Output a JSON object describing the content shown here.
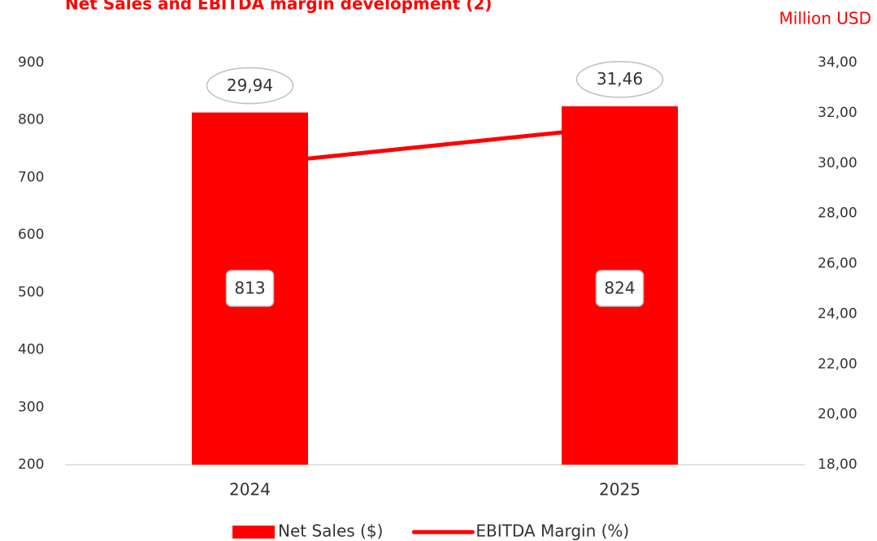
{
  "chart_data": {
    "type": "bar",
    "title": "Net Sales and EBITDA margin development (2)",
    "unit_label": "Million USD",
    "categories": [
      "2024",
      "2025"
    ],
    "series": [
      {
        "name": "Net Sales ($)",
        "type": "bar",
        "color": "#ff0000",
        "values": [
          813,
          824
        ]
      },
      {
        "name": "EBITDA Margin (%)",
        "type": "line",
        "axis": "y2",
        "color": "#ff0000",
        "values": [
          29.94,
          31.46
        ],
        "value_labels": [
          "29,94",
          "31,46"
        ]
      }
    ],
    "ylim": [
      200,
      900
    ],
    "yticks": [
      200,
      300,
      400,
      500,
      600,
      700,
      800,
      900
    ],
    "y2lim": [
      18,
      34
    ],
    "y2ticks": [
      {
        "value": 18,
        "label": "18,00"
      },
      {
        "value": 20,
        "label": "20,00"
      },
      {
        "value": 22,
        "label": "22,00"
      },
      {
        "value": 24,
        "label": "24,00"
      },
      {
        "value": 26,
        "label": "26,00"
      },
      {
        "value": 28,
        "label": "28,00"
      },
      {
        "value": 30,
        "label": "30,00"
      },
      {
        "value": 32,
        "label": "32,00"
      },
      {
        "value": 34,
        "label": "34,00"
      }
    ],
    "legend": "bottom"
  }
}
